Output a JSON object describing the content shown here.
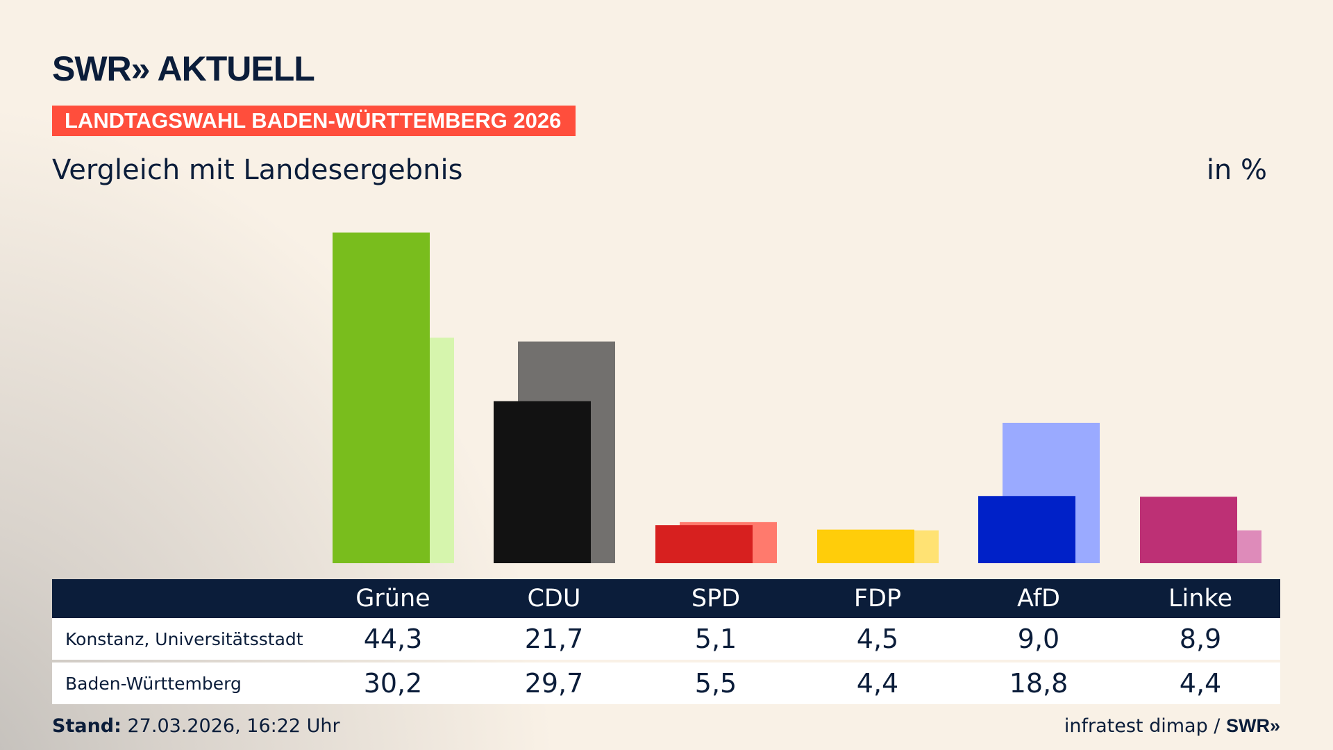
{
  "header": {
    "logo": "SWR» AKTUELL",
    "band": "LANDTAGSWAHL BADEN-WÜRTTEMBERG 2026",
    "subtitle": "Vergleich mit Landesergebnis",
    "unit": "in %"
  },
  "chart_data": {
    "type": "bar",
    "categories": [
      "Grüne",
      "CDU",
      "SPD",
      "FDP",
      "AfD",
      "Linke"
    ],
    "series": [
      {
        "name": "Konstanz, Universitätsstadt",
        "values": [
          44.3,
          21.7,
          5.1,
          4.5,
          9.0,
          8.9
        ],
        "colors": [
          "#79bd1d",
          "#121212",
          "#d7201f",
          "#ffcd0a",
          "#0021c8",
          "#bd3075"
        ]
      },
      {
        "name": "Baden-Württemberg",
        "values": [
          30.2,
          29.7,
          5.5,
          4.4,
          18.8,
          4.4
        ],
        "colors": [
          "#d6f5ad",
          "#72706e",
          "#ff7a6d",
          "#ffe273",
          "#9aaaff",
          "#de8bba"
        ]
      }
    ],
    "ylim": [
      0,
      50
    ]
  },
  "table": {
    "headers": [
      "Grüne",
      "CDU",
      "SPD",
      "FDP",
      "AfD",
      "Linke"
    ],
    "rows": [
      {
        "label": "Konstanz, Universitätsstadt",
        "values": [
          "44,3",
          "21,7",
          "5,1",
          "4,5",
          "9,0",
          "8,9"
        ]
      },
      {
        "label": "Baden-Württemberg",
        "values": [
          "30,2",
          "29,7",
          "5,5",
          "4,4",
          "18,8",
          "4,4"
        ]
      }
    ]
  },
  "footer": {
    "stand_label": "Stand:",
    "stand_value": " 27.03.2026, 16:22 Uhr",
    "source": "infratest dimap / ",
    "source_logo": "SWR»"
  }
}
